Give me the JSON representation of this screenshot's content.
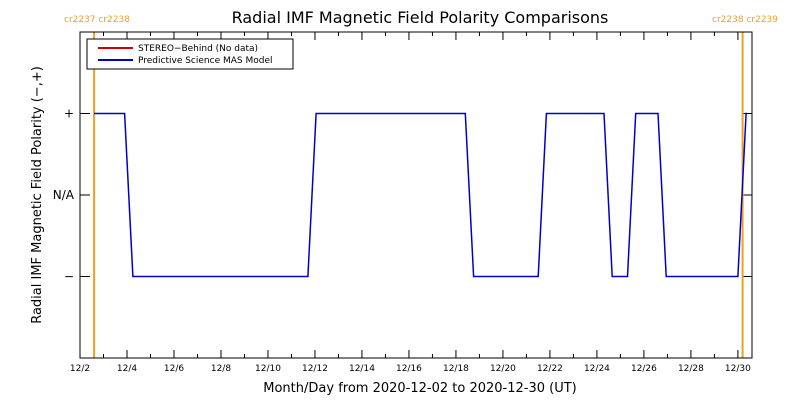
{
  "colors": {
    "stereo": "#cc0000",
    "model": "#0000cc",
    "carrington": "#f0a020",
    "axis": "#000000"
  },
  "chart_data": {
    "type": "line",
    "title": "Radial IMF Magnetic Field Polarity Comparisons",
    "xlabel": "Month/Day from 2020-12-02 to 2020-12-30 (UT)",
    "ylabel": "Radial IMF Magnetic Field Polarity (−,+)",
    "x_unit": "days after 2020-12-02 00:00 UT",
    "xlim": [
      0,
      28.6
    ],
    "ylim": [
      -2,
      2
    ],
    "x_ticks": [
      {
        "x": 0,
        "label": "12/2"
      },
      {
        "x": 2,
        "label": "12/4"
      },
      {
        "x": 4,
        "label": "12/6"
      },
      {
        "x": 6,
        "label": "12/8"
      },
      {
        "x": 8,
        "label": "12/10"
      },
      {
        "x": 10,
        "label": "12/12"
      },
      {
        "x": 12,
        "label": "12/14"
      },
      {
        "x": 14,
        "label": "12/16"
      },
      {
        "x": 16,
        "label": "12/18"
      },
      {
        "x": 18,
        "label": "12/20"
      },
      {
        "x": 20,
        "label": "12/22"
      },
      {
        "x": 22,
        "label": "12/24"
      },
      {
        "x": 24,
        "label": "12/26"
      },
      {
        "x": 26,
        "label": "12/28"
      },
      {
        "x": 28,
        "label": "12/30"
      }
    ],
    "y_ticks": [
      {
        "y": 1,
        "label": "+"
      },
      {
        "y": 0,
        "label": "N/A"
      },
      {
        "y": -1,
        "label": "−"
      }
    ],
    "carrington_markers": [
      {
        "x": 0.6,
        "label": "cr2237 cr2238",
        "side": "left"
      },
      {
        "x": 28.2,
        "label": "cr2238 cr2239",
        "side": "right"
      }
    ],
    "legend": {
      "placement": "top-left",
      "entries": [
        {
          "label": "STEREO−Behind (No data)",
          "color": "#cc0000"
        },
        {
          "label": "Predictive Science MAS Model",
          "color": "#0000cc"
        }
      ]
    },
    "series": [
      {
        "name": "Predictive Science MAS Model",
        "color": "#0000cc",
        "x": [
          0.6,
          1.9,
          2.25,
          9.7,
          10.05,
          16.4,
          16.75,
          19.5,
          19.85,
          22.3,
          22.65,
          23.3,
          23.65,
          24.6,
          24.95,
          28.0,
          28.35,
          28.4
        ],
        "y": [
          1,
          1,
          -1,
          -1,
          1,
          1,
          -1,
          -1,
          1,
          1,
          -1,
          -1,
          1,
          1,
          -1,
          -1,
          1,
          1
        ]
      }
    ]
  }
}
